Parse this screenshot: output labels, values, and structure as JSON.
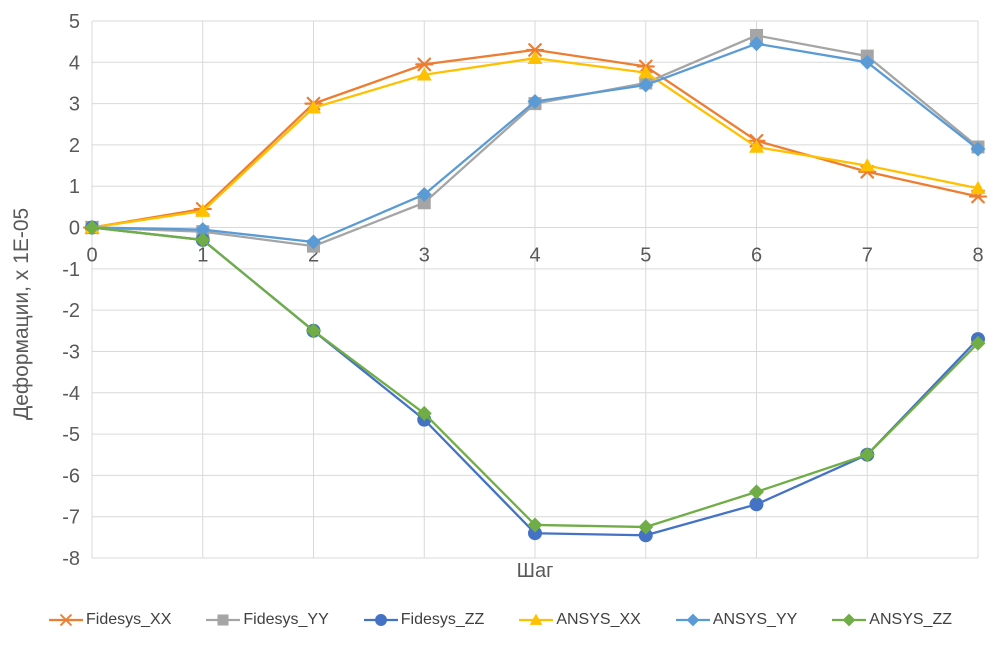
{
  "chart_data": {
    "type": "line",
    "title": "",
    "xlabel": "Шаг",
    "ylabel": "Деформации, х 1Е-05",
    "x": [
      0,
      1,
      2,
      3,
      4,
      5,
      6,
      7,
      8
    ],
    "x_ticks": [
      0,
      1,
      2,
      3,
      4,
      5,
      6,
      7,
      8
    ],
    "y_ticks": [
      5,
      4,
      3,
      2,
      1,
      0,
      -1,
      -2,
      -3,
      -4,
      -5,
      -6,
      -7,
      -8
    ],
    "xlim": [
      0,
      8
    ],
    "ylim": [
      -8,
      5
    ],
    "grid": true,
    "legend_position": "bottom",
    "series": [
      {
        "name": "Fidesys_XX",
        "color": "#ED7D31",
        "marker": "star",
        "values": [
          0,
          0.45,
          3.0,
          3.95,
          4.3,
          3.9,
          2.1,
          1.35,
          0.75
        ]
      },
      {
        "name": "Fidesys_YY",
        "color": "#A5A5A5",
        "marker": "square",
        "values": [
          0,
          -0.1,
          -0.45,
          0.6,
          3.0,
          3.5,
          4.65,
          4.15,
          1.95
        ]
      },
      {
        "name": "Fidesys_ZZ",
        "color": "#4472C4",
        "marker": "circle",
        "values": [
          0,
          -0.3,
          -2.5,
          -4.65,
          -7.4,
          -7.45,
          -6.7,
          -5.5,
          -2.7
        ]
      },
      {
        "name": "ANSYS_XX",
        "color": "#FFC000",
        "marker": "triangle",
        "values": [
          0,
          0.4,
          2.9,
          3.7,
          4.1,
          3.75,
          1.95,
          1.5,
          0.95
        ]
      },
      {
        "name": "ANSYS_YY",
        "color": "#5B9BD5",
        "marker": "diamond",
        "values": [
          0,
          -0.05,
          -0.35,
          0.8,
          3.05,
          3.45,
          4.45,
          4.0,
          1.9
        ]
      },
      {
        "name": "ANSYS_ZZ",
        "color": "#70AD47",
        "marker": "diamond",
        "values": [
          0,
          -0.3,
          -2.5,
          -4.5,
          -7.2,
          -7.25,
          -6.4,
          -5.5,
          -2.8
        ]
      }
    ],
    "style": {
      "grid_color": "#D9D9D9",
      "tick_color": "#595959",
      "axis_title_color": "#595959",
      "legend_text_color": "#404040",
      "background": "#FFFFFF"
    }
  }
}
